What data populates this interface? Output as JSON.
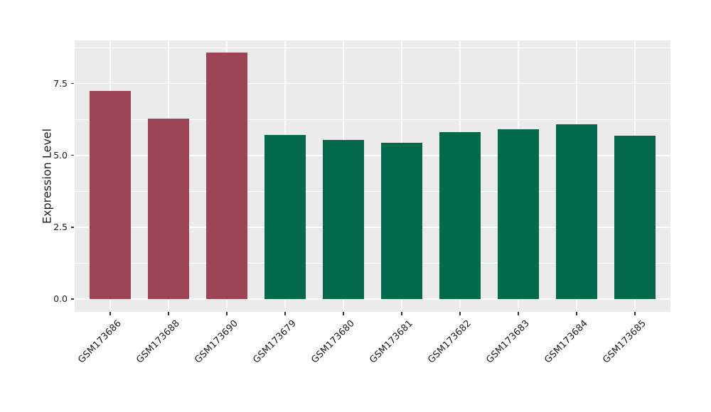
{
  "chart_data": {
    "type": "bar",
    "title": "",
    "xlabel": "",
    "ylabel": "Expression Level",
    "categories": [
      "GSM173686",
      "GSM173688",
      "GSM173690",
      "GSM173679",
      "GSM173680",
      "GSM173681",
      "GSM173682",
      "GSM173683",
      "GSM173684",
      "GSM173685"
    ],
    "values": [
      7.25,
      6.27,
      8.57,
      5.7,
      5.53,
      5.45,
      5.81,
      5.9,
      6.07,
      5.69
    ],
    "bar_colors": [
      "#9d4554",
      "#9d4554",
      "#9d4554",
      "#026a4b",
      "#026a4b",
      "#026a4b",
      "#026a4b",
      "#026a4b",
      "#026a4b",
      "#026a4b"
    ],
    "yticks": [
      0.0,
      2.5,
      5.0,
      7.5
    ],
    "ytick_labels": [
      "0.0",
      "2.5",
      "5.0",
      "7.5"
    ],
    "yticks_minor": [
      1.25,
      3.75,
      6.25,
      8.75
    ],
    "ylim": [
      -0.45,
      9.0
    ],
    "baseline": 0,
    "grid": "horizontal major+minor, vertical major at category centers",
    "legend_position": "none",
    "panel_background": "#ebebeb",
    "gridline_color": "#ffffff",
    "tick_mark_color": "#333333",
    "text_color": "#1a1a1a"
  }
}
